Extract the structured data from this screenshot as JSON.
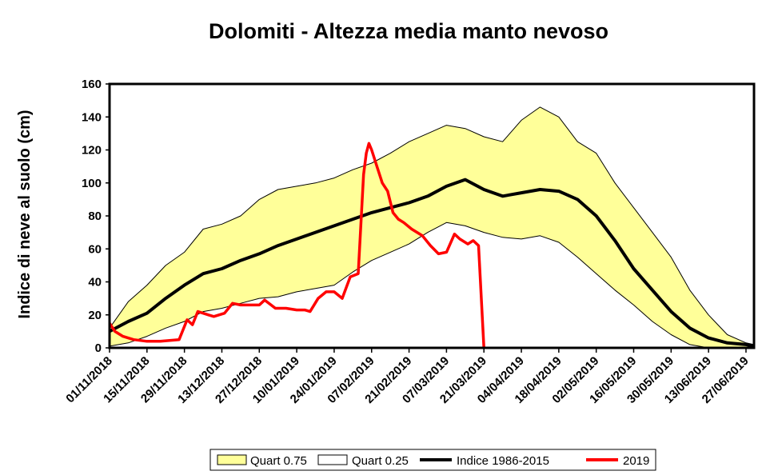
{
  "chart_data": {
    "type": "area",
    "title": "Dolomiti - Altezza media manto nevoso",
    "ylabel": "Indice di neve al suolo (cm)",
    "xlabel": "",
    "ylim": [
      0,
      160
    ],
    "yticks": [
      "0",
      "20",
      "40",
      "60",
      "80",
      "100",
      "120",
      "140",
      "160"
    ],
    "x_ticks": [
      "01/11/2018",
      "15/11/2018",
      "29/11/2018",
      "13/12/2018",
      "27/12/2018",
      "10/01/2019",
      "24/01/2019",
      "07/02/2019",
      "21/02/2019",
      "07/03/2019",
      "21/03/2019",
      "04/04/2019",
      "18/04/2019",
      "02/05/2019",
      "16/05/2019",
      "30/05/2019",
      "13/06/2019",
      "27/06/2019"
    ],
    "x": [
      "01/11/2018",
      "08/11/2018",
      "15/11/2018",
      "22/11/2018",
      "29/11/2018",
      "06/12/2018",
      "13/12/2018",
      "20/12/2018",
      "27/12/2018",
      "03/01/2019",
      "10/01/2019",
      "17/01/2019",
      "24/01/2019",
      "31/01/2019",
      "07/02/2019",
      "14/02/2019",
      "21/02/2019",
      "28/02/2019",
      "07/03/2019",
      "14/03/2019",
      "21/03/2019",
      "28/03/2019",
      "04/04/2019",
      "11/04/2019",
      "18/04/2019",
      "25/04/2019",
      "02/05/2019",
      "09/05/2019",
      "16/05/2019",
      "23/05/2019",
      "30/05/2019",
      "06/06/2019",
      "13/06/2019",
      "20/06/2019",
      "27/06/2019",
      "30/06/2019"
    ],
    "series": [
      {
        "name": "Quart 0.75",
        "color": "#ffff99",
        "values": [
          12,
          28,
          38,
          50,
          58,
          72,
          75,
          80,
          90,
          96,
          98,
          100,
          103,
          108,
          112,
          118,
          125,
          130,
          135,
          133,
          128,
          125,
          138,
          146,
          140,
          125,
          118,
          100,
          85,
          70,
          55,
          35,
          20,
          8,
          3,
          2
        ]
      },
      {
        "name": "Quart 0.25",
        "color": "#ffffff",
        "values": [
          1,
          3,
          7,
          12,
          16,
          22,
          24,
          27,
          30,
          31,
          34,
          36,
          38,
          46,
          53,
          58,
          63,
          70,
          76,
          74,
          70,
          67,
          66,
          68,
          64,
          55,
          45,
          35,
          26,
          16,
          8,
          2,
          0,
          0,
          0,
          0
        ]
      },
      {
        "name": "Indice 1986-2015",
        "color": "#000000",
        "values": [
          10,
          16,
          21,
          30,
          38,
          45,
          48,
          53,
          57,
          62,
          66,
          70,
          74,
          78,
          82,
          85,
          88,
          92,
          98,
          102,
          96,
          92,
          94,
          96,
          95,
          90,
          80,
          65,
          48,
          35,
          22,
          12,
          6,
          3,
          2,
          1
        ]
      }
    ],
    "observed_2019": {
      "name": "2019",
      "color": "#ff0000",
      "x": [
        "01/11/2018",
        "03/11/2018",
        "06/11/2018",
        "10/11/2018",
        "15/11/2018",
        "20/11/2018",
        "27/11/2018",
        "30/11/2018",
        "02/12/2018",
        "04/12/2018",
        "06/12/2018",
        "08/12/2018",
        "10/12/2018",
        "14/12/2018",
        "17/12/2018",
        "20/12/2018",
        "24/12/2018",
        "27/12/2018",
        "29/12/2018",
        "02/01/2019",
        "06/01/2019",
        "10/01/2019",
        "13/01/2019",
        "15/01/2019",
        "18/01/2019",
        "21/01/2019",
        "24/01/2019",
        "27/01/2019",
        "30/01/2019",
        "02/02/2019",
        "04/02/2019",
        "05/02/2019",
        "06/02/2019",
        "07/02/2019",
        "09/02/2019",
        "11/02/2019",
        "13/02/2019",
        "15/02/2019",
        "17/02/2019",
        "19/02/2019",
        "22/02/2019",
        "26/02/2019",
        "01/03/2019",
        "04/03/2019",
        "07/03/2019",
        "10/03/2019",
        "12/03/2019",
        "15/03/2019",
        "17/03/2019",
        "19/03/2019",
        "21/03/2019"
      ],
      "values": [
        15,
        10,
        7,
        5,
        4,
        4,
        5,
        17,
        14,
        22,
        21,
        20,
        19,
        21,
        27,
        26,
        26,
        26,
        29,
        24,
        24,
        23,
        23,
        22,
        30,
        34,
        34,
        30,
        43,
        45,
        105,
        118,
        124,
        120,
        110,
        100,
        95,
        82,
        78,
        76,
        72,
        68,
        62,
        57,
        58,
        69,
        66,
        63,
        65,
        62,
        0
      ]
    },
    "legend": [
      "Quart 0.75",
      "Quart 0.25",
      "Indice 1986-2015",
      "2019"
    ],
    "legend_position": "bottom",
    "grid": false,
    "band_color": "#ffff99",
    "axis_color": "#000000"
  }
}
